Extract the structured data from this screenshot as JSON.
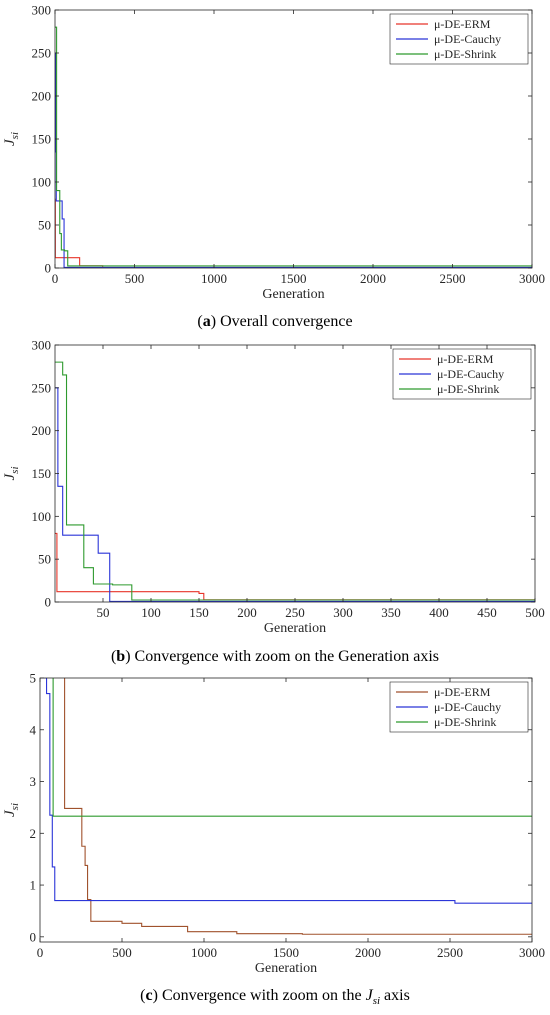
{
  "chart_data": [
    {
      "type": "line",
      "panel_letter": "a",
      "caption": "Overall convergence",
      "xlabel": "Generation",
      "ylabel_main": "J",
      "ylabel_sub": "si",
      "xlim": [
        0,
        3000
      ],
      "ylim": [
        0,
        300
      ],
      "xticks": [
        0,
        500,
        1000,
        1500,
        2000,
        2500,
        3000
      ],
      "yticks": [
        0,
        50,
        100,
        150,
        200,
        250,
        300
      ],
      "legend_position": "top-right",
      "series": [
        {
          "name": "μ-DE-ERM",
          "color": "#e8352a",
          "x": [
            0,
            2,
            2,
            5,
            5,
            155,
            155,
            300,
            300,
            3000
          ],
          "y": [
            80,
            80,
            12,
            12,
            12,
            12,
            2.5,
            2.5,
            0.3,
            0.05
          ]
        },
        {
          "name": "μ-DE-Cauchy",
          "color": "#2b35d8",
          "x": [
            0,
            3,
            3,
            8,
            8,
            20,
            20,
            45,
            45,
            57,
            57,
            2530,
            2530,
            3000
          ],
          "y": [
            250,
            250,
            135,
            135,
            78,
            78,
            78,
            78,
            57,
            57,
            0.7,
            0.7,
            0.65,
            0.65
          ]
        },
        {
          "name": "μ-DE-Shrink",
          "color": "#2e9a2e",
          "x": [
            0,
            10,
            10,
            30,
            30,
            40,
            40,
            60,
            60,
            80,
            80,
            3000
          ],
          "y": [
            280,
            280,
            90,
            90,
            40,
            40,
            21,
            21,
            20,
            20,
            2.35,
            2.35
          ]
        }
      ]
    },
    {
      "type": "line",
      "panel_letter": "b",
      "caption": "Convergence with zoom on the Generation axis",
      "xlabel": "Generation",
      "ylabel_main": "J",
      "ylabel_sub": "si",
      "xlim": [
        0,
        500
      ],
      "ylim": [
        0,
        300
      ],
      "xticks": [
        50,
        100,
        150,
        200,
        250,
        300,
        350,
        400,
        450,
        500
      ],
      "yticks": [
        0,
        50,
        100,
        150,
        200,
        250,
        300
      ],
      "legend_position": "top-right",
      "series": [
        {
          "name": "μ-DE-ERM",
          "color": "#e8352a",
          "x": [
            0,
            2,
            2,
            150,
            150,
            155,
            155,
            500
          ],
          "y": [
            80,
            80,
            12,
            12,
            10,
            10,
            2.5,
            2.5
          ]
        },
        {
          "name": "μ-DE-Cauchy",
          "color": "#2b35d8",
          "x": [
            0,
            3,
            3,
            8,
            8,
            45,
            45,
            57,
            57,
            500
          ],
          "y": [
            250,
            250,
            135,
            135,
            78,
            78,
            57,
            57,
            0.7,
            0.7
          ]
        },
        {
          "name": "μ-DE-Shrink",
          "color": "#2e9a2e",
          "x": [
            0,
            8,
            8,
            12,
            12,
            30,
            30,
            40,
            40,
            60,
            60,
            80,
            80,
            500
          ],
          "y": [
            280,
            280,
            265,
            265,
            90,
            90,
            40,
            40,
            21,
            21,
            20,
            20,
            2.35,
            2.35
          ]
        }
      ]
    },
    {
      "type": "line",
      "panel_letter": "c",
      "caption_prefix": "Convergence with zoom on the ",
      "caption_math_main": "J",
      "caption_math_sub": "si",
      "caption_suffix": " axis",
      "xlabel": "Generation",
      "ylabel_main": "J",
      "ylabel_sub": "si",
      "xlim": [
        0,
        3000
      ],
      "ylim": [
        -0.1,
        5
      ],
      "xticks": [
        0,
        500,
        1000,
        1500,
        2000,
        2500,
        3000
      ],
      "yticks": [
        0,
        1,
        2,
        3,
        4,
        5
      ],
      "legend_position": "top-right",
      "series": [
        {
          "name": "μ-DE-ERM",
          "color": "#a0522d",
          "x": [
            150,
            150,
            255,
            255,
            275,
            275,
            290,
            290,
            310,
            310,
            500,
            500,
            620,
            620,
            900,
            900,
            1200,
            1200,
            1600,
            1600,
            3000
          ],
          "y": [
            5,
            2.48,
            2.48,
            1.75,
            1.75,
            1.38,
            1.38,
            0.72,
            0.72,
            0.3,
            0.3,
            0.26,
            0.26,
            0.2,
            0.2,
            0.1,
            0.1,
            0.06,
            0.06,
            0.05,
            0.05
          ]
        },
        {
          "name": "μ-DE-Cauchy",
          "color": "#2b35d8",
          "x": [
            0,
            40,
            40,
            60,
            60,
            75,
            75,
            90,
            90,
            2530,
            2530,
            3000
          ],
          "y": [
            5,
            5,
            4.7,
            4.7,
            2.35,
            2.35,
            1.35,
            1.35,
            0.7,
            0.7,
            0.65,
            0.65
          ]
        },
        {
          "name": "μ-DE-Shrink",
          "color": "#2e9a2e",
          "x": [
            80,
            80,
            3000
          ],
          "y": [
            5,
            2.33,
            2.33
          ]
        }
      ]
    }
  ]
}
